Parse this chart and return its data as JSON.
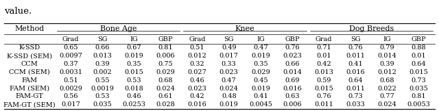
{
  "title_text": "value.",
  "col_groups": [
    {
      "label": "Method",
      "cols": [
        0
      ]
    },
    {
      "label": "Bone Age",
      "cols": [
        1,
        2,
        3,
        4
      ]
    },
    {
      "label": "Knee",
      "cols": [
        5,
        6,
        7,
        8
      ]
    },
    {
      "label": "Dog Breeds",
      "cols": [
        9,
        10,
        11,
        12
      ]
    }
  ],
  "sub_headers": [
    "",
    "Grad",
    "SG",
    "IG",
    "GBP",
    "Grad",
    "SG",
    "IG",
    "GBP",
    "Grad",
    "SG",
    "IG",
    "GBP"
  ],
  "rows": [
    [
      "K-SSD",
      "0.65",
      "0.66",
      "0.67",
      "0.81",
      "0.51",
      "0.49",
      "0.47",
      "0.76",
      "0.71",
      "0.76",
      "0.79",
      "0.88"
    ],
    [
      "K-SSD (SEM)",
      "0.0097",
      "0.013",
      "0.019",
      "0.006",
      "0.012",
      "0.017",
      "0.019",
      "0.023",
      "0.01",
      "0.011",
      "0.014",
      "0.01"
    ],
    [
      "CCM",
      "0.37",
      "0.39",
      "0.35",
      "0.75",
      "0.32",
      "0.33",
      "0.35",
      "0.66",
      "0.42",
      "0.41",
      "0.39",
      "0.64"
    ],
    [
      "CCM (SEM)",
      "0.0031",
      "0.002",
      "0.015",
      "0.029",
      "0.027",
      "0.023",
      "0.029",
      "0.014",
      "0.013",
      "0.016",
      "0.012",
      "0.015"
    ],
    [
      "FAM",
      "0.51",
      "0.55",
      "0.53",
      "0.68",
      "0.46",
      "0.47",
      "0.45",
      "0.69",
      "0.59",
      "0.64",
      "0.68",
      "0.73"
    ],
    [
      "FAM (SEM)",
      "0.0029",
      "0.0019",
      "0.018",
      "0.024",
      "0.023",
      "0.024",
      "0.019",
      "0.016",
      "0.015",
      "0.011",
      "0.022",
      "0.035"
    ],
    [
      "FAM-GT",
      "0.56",
      "0.53",
      "0.46",
      "0.61",
      "0.42",
      "0.48",
      "0.41",
      "0.63",
      "0.76",
      "0.73",
      "0.77",
      "0.81"
    ],
    [
      "FAM-GT (SEM)",
      "0.017",
      "0.035",
      "0.0253",
      "0.028",
      "0.016",
      "0.019",
      "0.0045",
      "0.006",
      "0.011",
      "0.033",
      "0.024",
      "0.0053"
    ]
  ],
  "bg_color": "#ffffff",
  "text_color": "#000000",
  "line_color": "#000000",
  "font_size": 7.0,
  "header_font_size": 8.0,
  "title_font_size": 9.5
}
